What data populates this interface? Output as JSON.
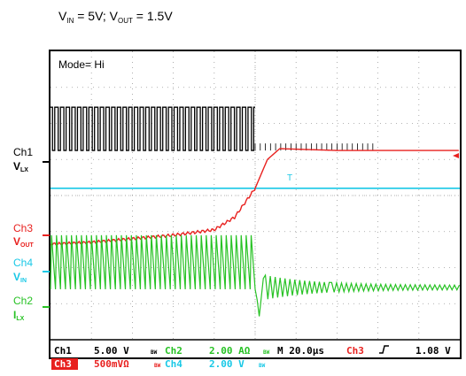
{
  "chart_data": {
    "type": "line",
    "title": {
      "v": "V",
      "in_sub": "IN",
      "eq1": " = 5V; V",
      "out_sub": "OUT",
      "eq2": " = 1.5V"
    },
    "mode_label": "Mode= Hi",
    "x_unit": "µs",
    "time_per_div": 20,
    "x_divisions": 10,
    "y_divisions": 8,
    "grid": true,
    "channels": [
      {
        "id": "ch1",
        "line1": "Ch1",
        "sym": "V",
        "sub": "LX",
        "color": "#000000",
        "scale_label": "5.00 V"
      },
      {
        "id": "ch3",
        "line1": "Ch3",
        "sym": "V",
        "sub": "OUT",
        "color": "#e8211f",
        "scale_label": "500mVΩ"
      },
      {
        "id": "ch4",
        "line1": "Ch4",
        "sym": "V",
        "sub": "IN",
        "color": "#19c8e6",
        "scale_label": "2.00 V"
      },
      {
        "id": "ch2",
        "line1": "Ch2",
        "sym": "I",
        "sub": "LX",
        "color": "#27c224",
        "scale_label": "2.00 AΩ"
      }
    ],
    "series": [
      {
        "channel": "ch1",
        "description": "switch node pulses",
        "low_div": 1.55,
        "high_div": 2.75,
        "pulse_count": 36,
        "pulse_width_us": 1.1,
        "dense_from_us": 100,
        "dense_to_us": 200
      },
      {
        "channel": "ch4",
        "flat_level_div": 3.8
      },
      {
        "channel": "ch3",
        "x": [
          0,
          20,
          40,
          60,
          80,
          90,
          100,
          106,
          112,
          140,
          200
        ],
        "y": [
          5.35,
          5.3,
          5.2,
          5.1,
          4.95,
          4.6,
          3.8,
          3.0,
          2.7,
          2.75,
          2.75
        ]
      },
      {
        "channel": "ch2",
        "ramp_low_div": 6.6,
        "ramp_high_div": 5.1,
        "ramp_count": 41,
        "ramp_until_us": 100,
        "settle_level_div": 6.55
      }
    ],
    "status_bar": {
      "r1c1": "Ch1",
      "r1c2": "5.00 V",
      "r1c3": "Ch2",
      "r1c4": "2.00 AΩ",
      "r1c5": "M 20.0µs",
      "r1c6": "Ch3",
      "r1c7": "1.08 V",
      "r2c1": "Ch3",
      "r2c2": "500mVΩ",
      "r2c3": "Ch4",
      "r2c4": "2.00 V",
      "bw": "BW"
    }
  }
}
